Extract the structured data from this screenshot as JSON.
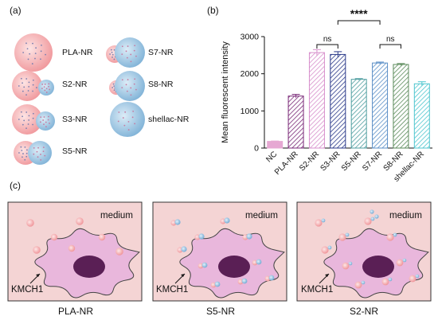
{
  "panels": {
    "a": "(a)",
    "b": "(b)",
    "c": "(c)"
  },
  "particles": [
    {
      "label": "PLA-NR",
      "type": "pla"
    },
    {
      "label": "S2-NR",
      "type": "s2"
    },
    {
      "label": "S3-NR",
      "type": "s3"
    },
    {
      "label": "S5-NR",
      "type": "s5"
    },
    {
      "label": "S7-NR",
      "type": "s7"
    },
    {
      "label": "S8-NR",
      "type": "s8"
    },
    {
      "label": "shellac-NR",
      "type": "shellac"
    }
  ],
  "colors": {
    "pla": "#f2a5a7",
    "shellac": "#9ec7e2",
    "cell_background": "#f4d4d4",
    "cell_body": "#e9b7dc",
    "nucleus": "#5a1f55"
  },
  "chart_data": {
    "type": "bar",
    "ylabel": "Mean fluorescent intensity",
    "ylim": [
      0,
      3000
    ],
    "yticks": [
      0,
      1000,
      2000,
      3000
    ],
    "categories": [
      "NC",
      "PLA-NR",
      "S2-NR",
      "S3-NR",
      "S5-NR",
      "S7-NR",
      "S8-NR",
      "shellac-NR"
    ],
    "values": [
      180,
      1400,
      2570,
      2520,
      1850,
      2290,
      2250,
      1730
    ],
    "errors": [
      10,
      45,
      80,
      75,
      20,
      25,
      25,
      55
    ],
    "bar_colors": [
      "#e6a8d3",
      "#7a2a78",
      "#d78fcc",
      "#2b3a8a",
      "#4f9ea0",
      "#5b8fc7",
      "#5a8a5a",
      "#4fc6cf"
    ],
    "hatched": [
      false,
      true,
      true,
      true,
      true,
      true,
      true,
      true
    ],
    "significance": [
      {
        "from": "S2-NR",
        "to": "S3-NR",
        "label": "ns"
      },
      {
        "from": "S7-NR",
        "to": "S8-NR",
        "label": "ns"
      },
      {
        "from": "S3-NR",
        "to": "S7-NR",
        "label": "****"
      }
    ]
  },
  "cells": [
    {
      "medium": "medium",
      "cell_label": "KMCH1",
      "caption": "PLA-NR"
    },
    {
      "medium": "medium",
      "cell_label": "KMCH1",
      "caption": "S5-NR"
    },
    {
      "medium": "medium",
      "cell_label": "KMCH1",
      "caption": "S2-NR"
    }
  ]
}
